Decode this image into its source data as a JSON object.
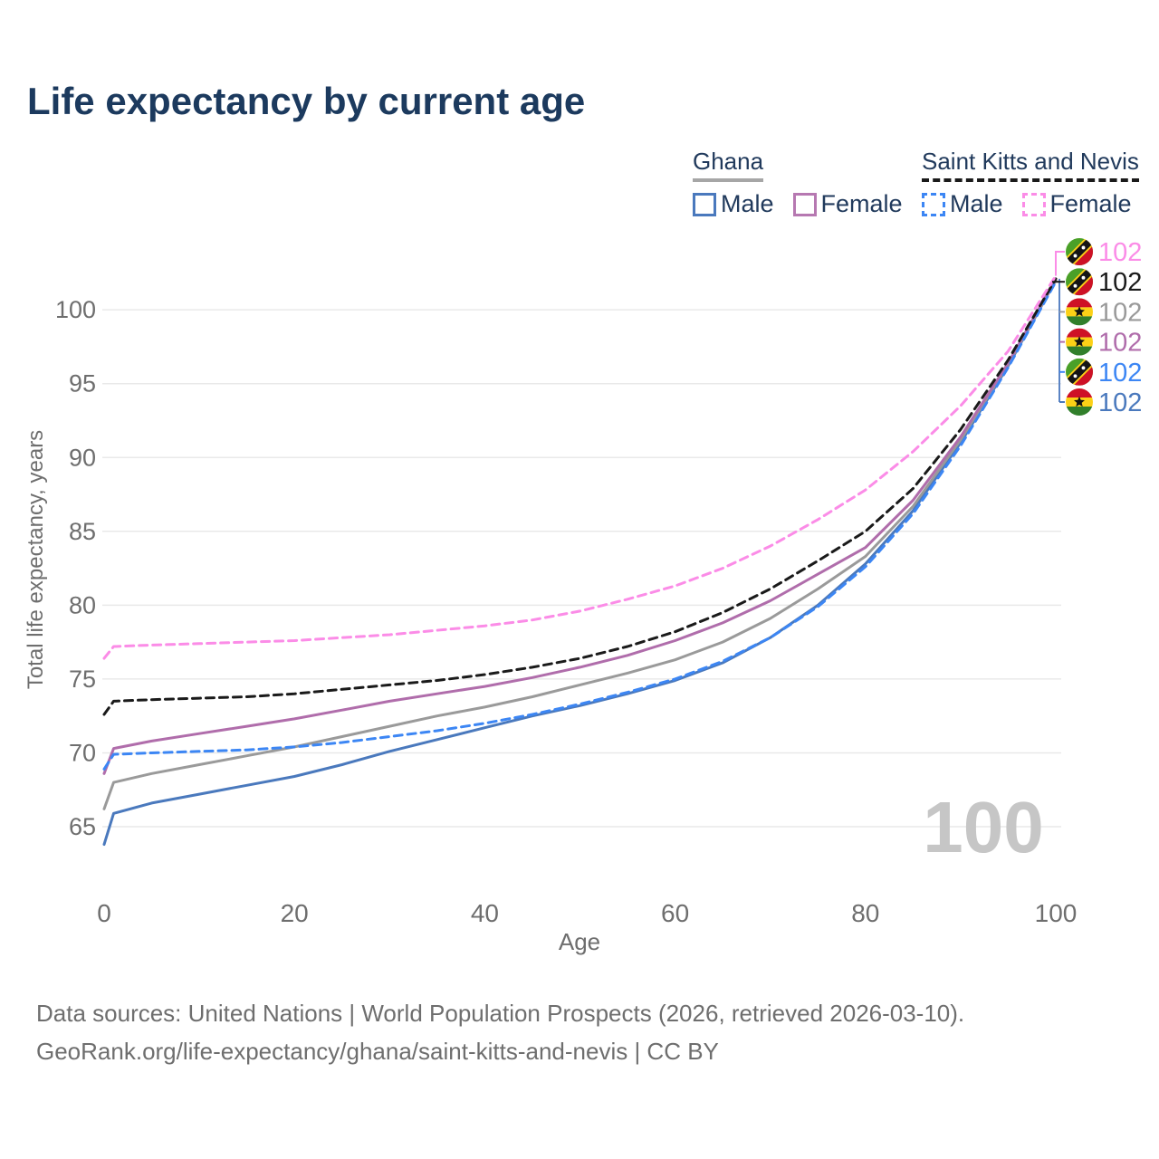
{
  "header": {
    "title": "Life expectancy by current age"
  },
  "legend": {
    "groups": [
      {
        "title": "Ghana",
        "line_style": "solid",
        "line_color": "#a6a6a6",
        "items": [
          {
            "label": "Male",
            "color": "#4a79bd",
            "dashed": false
          },
          {
            "label": "Female",
            "color": "#b678b1",
            "dashed": false
          }
        ]
      },
      {
        "title": "Saint Kitts and Nevis",
        "line_style": "dashed",
        "line_color": "#1a1a1a",
        "items": [
          {
            "label": "Male",
            "color": "#3c86f4",
            "dashed": true
          },
          {
            "label": "Female",
            "color": "#fb8ce7",
            "dashed": true
          }
        ]
      }
    ]
  },
  "chart_data": {
    "type": "line",
    "title": "Life expectancy by current age",
    "xlabel": "Age",
    "ylabel": "Total life expectancy, years",
    "xticks": [
      0,
      20,
      40,
      60,
      80,
      100
    ],
    "yticks": [
      65,
      70,
      75,
      80,
      85,
      90,
      95,
      100
    ],
    "xlim": [
      0,
      100
    ],
    "ylim": [
      63,
      103
    ],
    "grid": true,
    "legend_position": "top-right",
    "hover_age_watermark": "100",
    "x": [
      0,
      1,
      5,
      10,
      15,
      20,
      25,
      30,
      35,
      40,
      45,
      50,
      55,
      60,
      65,
      70,
      75,
      80,
      85,
      90,
      95,
      100
    ],
    "series": [
      {
        "key": "ghana_male",
        "name": "Ghana Male",
        "country": "Ghana",
        "color": "#4a79bd",
        "dashed": false,
        "values": [
          63.8,
          65.9,
          66.6,
          67.2,
          67.8,
          68.4,
          69.2,
          70.1,
          70.9,
          71.7,
          72.5,
          73.2,
          74.0,
          74.9,
          76.1,
          77.8,
          80.0,
          82.8,
          86.4,
          91.0,
          96.2,
          102.0
        ]
      },
      {
        "key": "ghana_total",
        "name": "Ghana",
        "country": "Ghana",
        "color": "#9a9a9a",
        "dashed": false,
        "values": [
          66.2,
          68.0,
          68.6,
          69.2,
          69.8,
          70.4,
          71.1,
          71.8,
          72.5,
          73.1,
          73.8,
          74.6,
          75.4,
          76.3,
          77.5,
          79.1,
          81.1,
          83.3,
          86.7,
          91.2,
          96.3,
          102.0
        ]
      },
      {
        "key": "ghana_female",
        "name": "Ghana Female",
        "country": "Ghana",
        "color": "#b06dab",
        "dashed": false,
        "values": [
          68.6,
          70.3,
          70.8,
          71.3,
          71.8,
          72.3,
          72.9,
          73.5,
          74.0,
          74.5,
          75.1,
          75.8,
          76.6,
          77.6,
          78.8,
          80.3,
          82.1,
          83.9,
          87.1,
          91.4,
          96.4,
          102.1
        ]
      },
      {
        "key": "skn_male",
        "name": "Saint Kitts and Nevis Male",
        "country": "Saint Kitts and Nevis",
        "color": "#3c86f4",
        "dashed": true,
        "values": [
          68.9,
          69.9,
          70.0,
          70.1,
          70.2,
          70.4,
          70.7,
          71.1,
          71.5,
          72.0,
          72.6,
          73.3,
          74.1,
          75.0,
          76.2,
          77.8,
          79.9,
          82.6,
          86.2,
          90.8,
          96.1,
          101.9
        ]
      },
      {
        "key": "skn_total",
        "name": "Saint Kitts and Nevis",
        "country": "Saint Kitts and Nevis",
        "color": "#1a1a1a",
        "dashed": true,
        "values": [
          72.6,
          73.5,
          73.6,
          73.7,
          73.8,
          74.0,
          74.3,
          74.6,
          74.9,
          75.3,
          75.8,
          76.4,
          77.2,
          78.2,
          79.5,
          81.1,
          83.0,
          85.0,
          87.9,
          91.9,
          96.6,
          102.1
        ]
      },
      {
        "key": "skn_female",
        "name": "Saint Kitts and Nevis Female",
        "country": "Saint Kitts and Nevis",
        "color": "#fb8ce7",
        "dashed": true,
        "values": [
          76.4,
          77.2,
          77.3,
          77.4,
          77.5,
          77.6,
          77.8,
          78.0,
          78.3,
          78.6,
          79.0,
          79.6,
          80.4,
          81.3,
          82.5,
          84.0,
          85.8,
          87.8,
          90.4,
          93.5,
          97.2,
          102.3
        ]
      }
    ],
    "end_labels": [
      {
        "series_key": "skn_female",
        "flag": "saint-kitts-nevis",
        "text": "102",
        "color": "#fb8ce7"
      },
      {
        "series_key": "skn_total",
        "flag": "saint-kitts-nevis",
        "text": "102",
        "color": "#1a1a1a"
      },
      {
        "series_key": "ghana_total",
        "flag": "ghana",
        "text": "102",
        "color": "#9a9a9a"
      },
      {
        "series_key": "ghana_female",
        "flag": "ghana",
        "text": "102",
        "color": "#b06dab"
      },
      {
        "series_key": "skn_male",
        "flag": "saint-kitts-nevis",
        "text": "102",
        "color": "#3c86f4"
      },
      {
        "series_key": "ghana_male",
        "flag": "ghana",
        "text": "102",
        "color": "#4a79bd"
      }
    ]
  },
  "footer": {
    "line1": "Data sources: United Nations | World Population Prospects (2026, retrieved 2026-03-10).",
    "line2": "GeoRank.org/life-expectancy/ghana/saint-kitts-and-nevis | CC BY"
  }
}
